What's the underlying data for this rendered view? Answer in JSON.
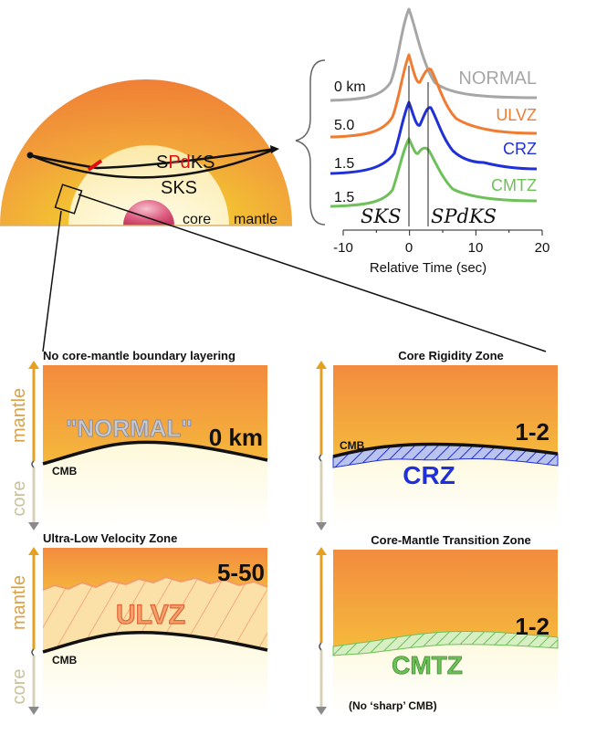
{
  "earth": {
    "ray_upper_prefix": "S",
    "ray_upper_highlight": "Pd",
    "ray_upper_suffix": "KS",
    "ray_lower": "SKS",
    "core_label": "core",
    "mantle_label": "mantle"
  },
  "seismogram": {
    "depths": [
      "0 km",
      "5.0",
      "1.5",
      "1.5"
    ],
    "names": [
      "NORMAL",
      "ULVZ",
      "CRZ",
      "CMTZ"
    ],
    "phase_left": "SKS",
    "phase_right": "SPdKS",
    "xticks": [
      "-10",
      "0",
      "10",
      "20"
    ],
    "xlabel": "Relative Time (sec)"
  },
  "colors": {
    "normal": "#a6a6a6",
    "ulvz": "#f07c32",
    "crz": "#2030d8",
    "cmtz": "#6ec05a",
    "ray_highlight": "#e01010"
  },
  "panels": [
    {
      "title": "No core-mantle boundary layering",
      "label": "\"NORMAL\"",
      "thickness": "0 km",
      "cmb": "CMB",
      "mantle": "mantle",
      "core": "core",
      "note": ""
    },
    {
      "title": "Core Rigidity Zone",
      "label": "CRZ",
      "thickness": "1-2",
      "cmb": "CMB",
      "mantle": "",
      "core": "",
      "note": ""
    },
    {
      "title": "Ultra-Low Velocity Zone",
      "label": "ULVZ",
      "thickness": "5-50",
      "cmb": "CMB",
      "mantle": "mantle",
      "core": "core",
      "note": ""
    },
    {
      "title": "Core-Mantle Transition Zone",
      "label": "CMTZ",
      "thickness": "1-2",
      "cmb": "",
      "mantle": "",
      "core": "",
      "note": "(No ‘sharp’ CMB)"
    }
  ]
}
